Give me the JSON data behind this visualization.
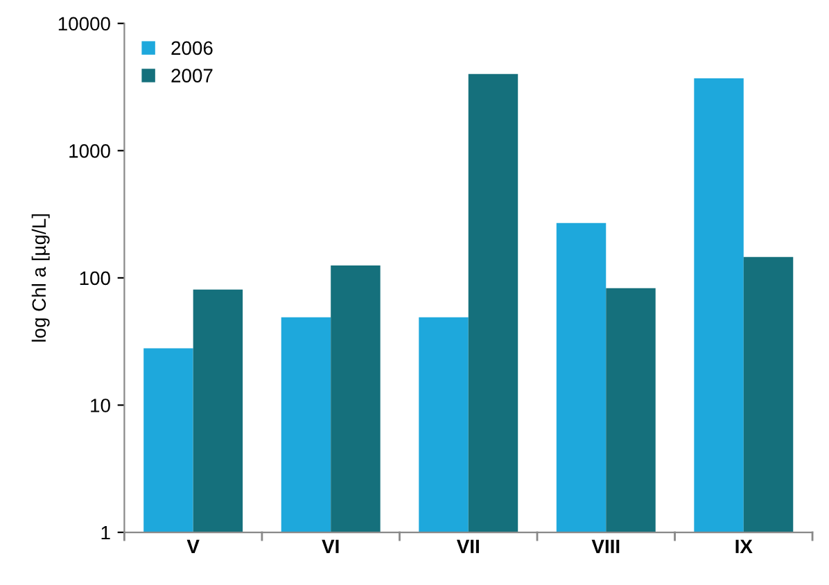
{
  "chart_data": {
    "type": "bar",
    "ylabel": "log Chl a [µg/L]",
    "categories": [
      "V",
      "VI",
      "VII",
      "VIII",
      "IX"
    ],
    "series": [
      {
        "name": "2006",
        "color": "#1ea8dc",
        "values": [
          28,
          49,
          49,
          270,
          3700
        ]
      },
      {
        "name": "2007",
        "color": "#15707c",
        "values": [
          81,
          125,
          4000,
          83,
          146
        ]
      }
    ],
    "log": "y",
    "ylim": [
      1,
      10000
    ],
    "yticks": [
      1,
      10,
      100,
      1000,
      10000
    ],
    "grid": false,
    "legend": "top left"
  }
}
